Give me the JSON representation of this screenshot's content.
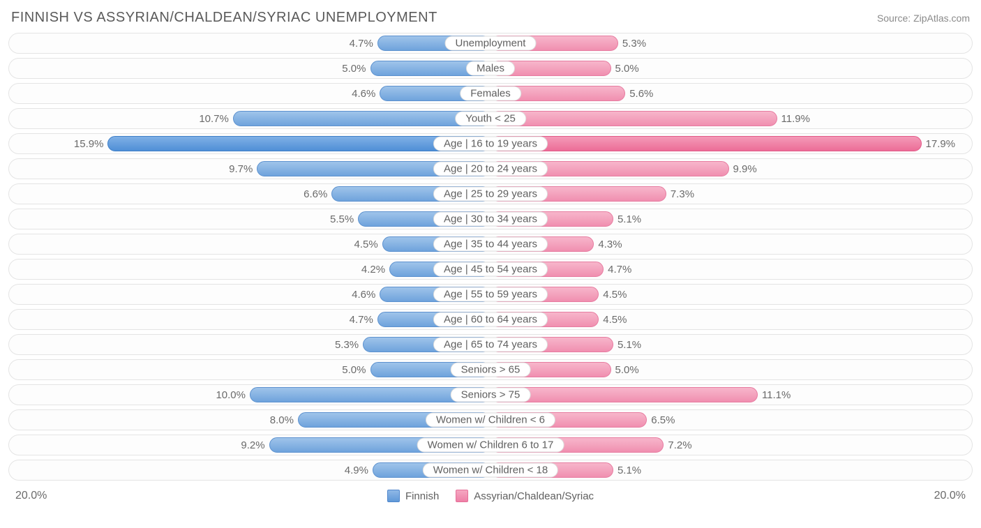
{
  "title": "FINNISH VS ASSYRIAN/CHALDEAN/SYRIAC UNEMPLOYMENT",
  "source": "Source: ZipAtlas.com",
  "axis_max_pct": 20.0,
  "axis_max_label_left": "20.0%",
  "axis_max_label_right": "20.0%",
  "legend": {
    "left_label": "Finnish",
    "right_label": "Assyrian/Chaldean/Syriac"
  },
  "colors": {
    "left_bar_top": "#9fc4ea",
    "left_bar_bottom": "#6fa3dc",
    "left_bar_border": "#5c91cf",
    "left_peak_top": "#7fb0e6",
    "left_peak_bottom": "#4f8fd6",
    "right_bar_top": "#f7b6cb",
    "right_bar_bottom": "#f08fb0",
    "right_bar_border": "#e77ba0",
    "right_peak_top": "#f49ab8",
    "right_peak_bottom": "#ec6d97",
    "row_border": "#e4e4e4",
    "background": "#ffffff",
    "text": "#5f5f5f"
  },
  "typography": {
    "title_fontsize": 20,
    "label_fontsize": 15,
    "value_fontsize": 15,
    "axis_fontsize": 16,
    "source_fontsize": 14
  },
  "rows": [
    {
      "label": "Unemployment",
      "left_pct": 4.7,
      "right_pct": 5.3,
      "left_label": "4.7%",
      "right_label": "5.3%",
      "peak": false
    },
    {
      "label": "Males",
      "left_pct": 5.0,
      "right_pct": 5.0,
      "left_label": "5.0%",
      "right_label": "5.0%",
      "peak": false
    },
    {
      "label": "Females",
      "left_pct": 4.6,
      "right_pct": 5.6,
      "left_label": "4.6%",
      "right_label": "5.6%",
      "peak": false
    },
    {
      "label": "Youth < 25",
      "left_pct": 10.7,
      "right_pct": 11.9,
      "left_label": "10.7%",
      "right_label": "11.9%",
      "peak": false
    },
    {
      "label": "Age | 16 to 19 years",
      "left_pct": 15.9,
      "right_pct": 17.9,
      "left_label": "15.9%",
      "right_label": "17.9%",
      "peak": true
    },
    {
      "label": "Age | 20 to 24 years",
      "left_pct": 9.7,
      "right_pct": 9.9,
      "left_label": "9.7%",
      "right_label": "9.9%",
      "peak": false
    },
    {
      "label": "Age | 25 to 29 years",
      "left_pct": 6.6,
      "right_pct": 7.3,
      "left_label": "6.6%",
      "right_label": "7.3%",
      "peak": false
    },
    {
      "label": "Age | 30 to 34 years",
      "left_pct": 5.5,
      "right_pct": 5.1,
      "left_label": "5.5%",
      "right_label": "5.1%",
      "peak": false
    },
    {
      "label": "Age | 35 to 44 years",
      "left_pct": 4.5,
      "right_pct": 4.3,
      "left_label": "4.5%",
      "right_label": "4.3%",
      "peak": false
    },
    {
      "label": "Age | 45 to 54 years",
      "left_pct": 4.2,
      "right_pct": 4.7,
      "left_label": "4.2%",
      "right_label": "4.7%",
      "peak": false
    },
    {
      "label": "Age | 55 to 59 years",
      "left_pct": 4.6,
      "right_pct": 4.5,
      "left_label": "4.6%",
      "right_label": "4.5%",
      "peak": false
    },
    {
      "label": "Age | 60 to 64 years",
      "left_pct": 4.7,
      "right_pct": 4.5,
      "left_label": "4.7%",
      "right_label": "4.5%",
      "peak": false
    },
    {
      "label": "Age | 65 to 74 years",
      "left_pct": 5.3,
      "right_pct": 5.1,
      "left_label": "5.3%",
      "right_label": "5.1%",
      "peak": false
    },
    {
      "label": "Seniors > 65",
      "left_pct": 5.0,
      "right_pct": 5.0,
      "left_label": "5.0%",
      "right_label": "5.0%",
      "peak": false
    },
    {
      "label": "Seniors > 75",
      "left_pct": 10.0,
      "right_pct": 11.1,
      "left_label": "10.0%",
      "right_label": "11.1%",
      "peak": false
    },
    {
      "label": "Women w/ Children < 6",
      "left_pct": 8.0,
      "right_pct": 6.5,
      "left_label": "8.0%",
      "right_label": "6.5%",
      "peak": false
    },
    {
      "label": "Women w/ Children 6 to 17",
      "left_pct": 9.2,
      "right_pct": 7.2,
      "left_label": "9.2%",
      "right_label": "7.2%",
      "peak": false
    },
    {
      "label": "Women w/ Children < 18",
      "left_pct": 4.9,
      "right_pct": 5.1,
      "left_label": "4.9%",
      "right_label": "5.1%",
      "peak": false
    }
  ]
}
